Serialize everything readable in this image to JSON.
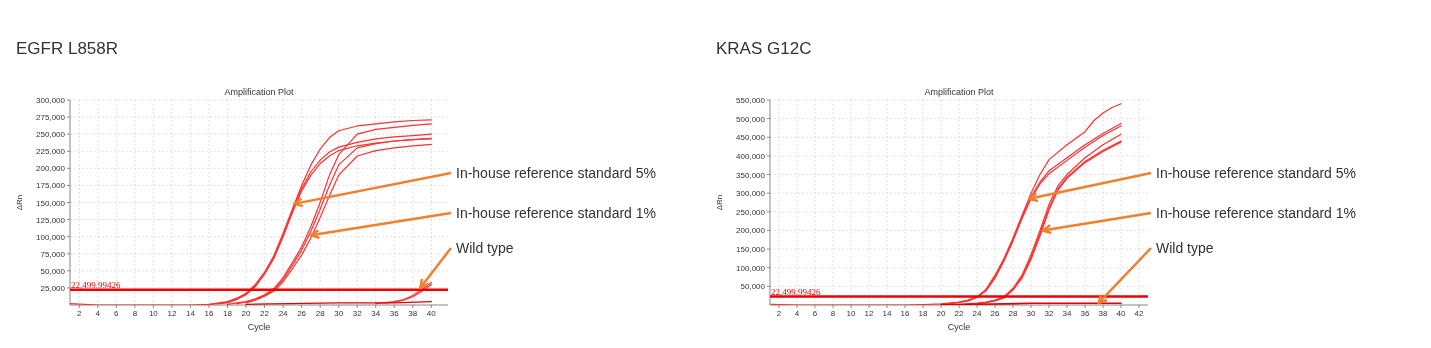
{
  "chart_data": [
    {
      "type": "line",
      "title": "EGFR  L858R",
      "subtitle": "Amplification Plot",
      "xlabel": "Cycle",
      "ylabel": "ΔRn",
      "xlim": [
        1,
        41.8
      ],
      "xticks": [
        2,
        4,
        6,
        8,
        10,
        12,
        14,
        16,
        18,
        20,
        22,
        24,
        26,
        28,
        30,
        32,
        34,
        36,
        38,
        40
      ],
      "ylim": [
        0,
        300000
      ],
      "yticks": [
        {
          "value": 25000,
          "label": "25,000"
        },
        {
          "value": 50000,
          "label": "50,000"
        },
        {
          "value": 75000,
          "label": "75,000"
        },
        {
          "value": 100000,
          "label": "100,000"
        },
        {
          "value": 125000,
          "label": "125,000"
        },
        {
          "value": 150000,
          "label": "150,000"
        },
        {
          "value": 175000,
          "label": "175,000"
        },
        {
          "value": 200000,
          "label": "200,000"
        },
        {
          "value": 225000,
          "label": "225,000"
        },
        {
          "value": 250000,
          "label": "250,000"
        },
        {
          "value": 275000,
          "label": "275,000"
        },
        {
          "value": 300000,
          "label": "300,000"
        }
      ],
      "grid": true,
      "ref_lines": [
        {
          "axis": "y",
          "value": 22499.99426,
          "label": "22,499.99426",
          "color": "#ee0000"
        }
      ],
      "annotations": [
        {
          "text": "In-house reference standard 5%",
          "x": 25.2,
          "y": 148000
        },
        {
          "text": "In-house reference standard 1%",
          "x": 27,
          "y": 102000
        },
        {
          "text": "Wild type",
          "x": 38.8,
          "y": 25000
        }
      ],
      "series": [
        {
          "color": "#ff3030",
          "x": [
            1,
            4,
            14,
            16,
            18,
            19,
            20,
            21,
            22,
            23,
            24,
            25,
            26,
            27,
            28,
            29,
            30,
            32,
            34,
            36,
            38,
            40
          ],
          "values": [
            2000,
            0,
            0,
            1000,
            5000,
            10000,
            17000,
            30000,
            48000,
            72000,
            105000,
            140000,
            175000,
            205000,
            228000,
            245000,
            255000,
            262000,
            265000,
            268000,
            270000,
            271000
          ]
        },
        {
          "color": "#ff3030",
          "x": [
            17,
            18,
            19,
            20,
            21,
            22,
            23,
            24,
            25,
            26,
            27,
            28,
            29,
            30,
            32,
            34,
            36,
            38,
            40
          ],
          "values": [
            2000,
            4000,
            9000,
            16000,
            28000,
            46000,
            70000,
            102000,
            138000,
            170000,
            195000,
            212000,
            224000,
            231000,
            238000,
            243000,
            246000,
            248000,
            250000
          ]
        },
        {
          "color": "#ff3030",
          "x": [
            16,
            18,
            19,
            20,
            21,
            22,
            23,
            24,
            25,
            26,
            27,
            28,
            29,
            30,
            32,
            34,
            36,
            38,
            40
          ],
          "values": [
            1000,
            3000,
            8000,
            15000,
            27000,
            45000,
            68000,
            100000,
            135000,
            167000,
            190000,
            207000,
            218000,
            226000,
            233000,
            237000,
            240000,
            242000,
            243000
          ]
        },
        {
          "color": "#ff3030",
          "x": [
            18,
            19,
            20,
            21,
            22,
            23,
            24,
            25,
            26,
            27,
            28,
            29,
            30,
            32,
            34,
            36,
            38,
            40
          ],
          "values": [
            1000,
            3000,
            5000,
            9000,
            15000,
            24000,
            40000,
            62000,
            85000,
            115000,
            150000,
            190000,
            220000,
            250000,
            257000,
            260000,
            263000,
            265000
          ]
        },
        {
          "color": "#ff3030",
          "x": [
            19,
            20,
            21,
            22,
            23,
            24,
            25,
            26,
            27,
            28,
            29,
            30,
            32,
            34,
            36,
            38,
            40
          ],
          "values": [
            2000,
            4000,
            8000,
            14000,
            22000,
            37000,
            58000,
            80000,
            108000,
            140000,
            175000,
            205000,
            230000,
            236000,
            240000,
            242000,
            244000
          ]
        },
        {
          "color": "#ff3030",
          "x": [
            20,
            21,
            22,
            23,
            24,
            25,
            26,
            27,
            28,
            29,
            30,
            32,
            34,
            36,
            38,
            40
          ],
          "values": [
            3000,
            7000,
            13000,
            20000,
            34000,
            53000,
            73000,
            98000,
            128000,
            160000,
            190000,
            218000,
            226000,
            230000,
            233000,
            235000
          ]
        },
        {
          "color": "#ff3030",
          "x": [
            34,
            36,
            37,
            38,
            39,
            40
          ],
          "values": [
            2000,
            5000,
            8000,
            14000,
            23000,
            33000
          ]
        },
        {
          "color": "#ff3030",
          "x": [
            35,
            36,
            37,
            38,
            39,
            40
          ],
          "values": [
            3000,
            4000,
            7000,
            12000,
            20000,
            30000
          ]
        },
        {
          "color": "#e00000",
          "x": [
            20,
            30,
            36,
            40
          ],
          "values": [
            1000,
            3000,
            3000,
            5000
          ]
        }
      ]
    },
    {
      "type": "line",
      "title": "KRAS  G12C",
      "subtitle": "Amplification Plot",
      "xlabel": "Cycle",
      "ylabel": "ΔRn",
      "xlim": [
        1,
        43
      ],
      "xticks": [
        2,
        4,
        6,
        8,
        10,
        12,
        14,
        16,
        18,
        20,
        22,
        24,
        26,
        28,
        30,
        32,
        34,
        36,
        38,
        40,
        42
      ],
      "ylim": [
        0,
        550000
      ],
      "yticks": [
        {
          "value": 50000,
          "label": "50,000"
        },
        {
          "value": 100000,
          "label": "100,000"
        },
        {
          "value": 150000,
          "label": "150,000"
        },
        {
          "value": 200000,
          "label": "200,000"
        },
        {
          "value": 250000,
          "label": "250,000"
        },
        {
          "value": 300000,
          "label": "300,000"
        },
        {
          "value": 350000,
          "label": "350,000"
        },
        {
          "value": 400000,
          "label": "400,000"
        },
        {
          "value": 450000,
          "label": "450,000"
        },
        {
          "value": 500000,
          "label": "500,000"
        },
        {
          "value": 550000,
          "label": "550,000"
        }
      ],
      "grid": true,
      "ref_lines": [
        {
          "axis": "y",
          "value": 22499.99426,
          "label": "22,499.99426",
          "color": "#ee0000"
        }
      ],
      "annotations": [
        {
          "text": "In-house reference standard 5%",
          "x": 29.8,
          "y": 285000
        },
        {
          "text": "In-house reference standard 1%",
          "x": 31.3,
          "y": 200000
        },
        {
          "text": "Wild type",
          "x": 37.5,
          "y": 5000
        }
      ],
      "series": [
        {
          "color": "#ff3030",
          "x": [
            1,
            4,
            16,
            18,
            20,
            22,
            23,
            24,
            25,
            26,
            27,
            28,
            29,
            30,
            31,
            32,
            34,
            36,
            37,
            38,
            39,
            40
          ],
          "values": [
            2000,
            0,
            0,
            1000,
            3000,
            8000,
            13000,
            22000,
            42000,
            80000,
            125000,
            180000,
            240000,
            300000,
            350000,
            390000,
            430000,
            465000,
            495000,
            515000,
            530000,
            540000
          ]
        },
        {
          "color": "#ff3030",
          "x": [
            20,
            22,
            23,
            24,
            25,
            26,
            27,
            28,
            29,
            30,
            31,
            32,
            34,
            36,
            38,
            40
          ],
          "values": [
            2000,
            6000,
            12000,
            21000,
            40000,
            75000,
            120000,
            175000,
            235000,
            290000,
            330000,
            360000,
            395000,
            430000,
            460000,
            487000
          ]
        },
        {
          "color": "#ff3030",
          "x": [
            21,
            22,
            23,
            24,
            25,
            26,
            27,
            28,
            29,
            30,
            31,
            32,
            34,
            36,
            38,
            40
          ],
          "values": [
            4000,
            7000,
            11000,
            20000,
            38000,
            72000,
            118000,
            172000,
            232000,
            285000,
            325000,
            352000,
            388000,
            423000,
            455000,
            480000
          ]
        },
        {
          "color": "#ff3030",
          "x": [
            22,
            24,
            25,
            26,
            27,
            28,
            29,
            30,
            31,
            32,
            33,
            34,
            36,
            38,
            40
          ],
          "values": [
            2000,
            5000,
            8000,
            13000,
            22000,
            45000,
            80000,
            135000,
            200000,
            270000,
            320000,
            350000,
            395000,
            430000,
            458000
          ]
        },
        {
          "color": "#ff3030",
          "x": [
            23,
            24,
            25,
            26,
            27,
            28,
            29,
            30,
            31,
            32,
            33,
            34,
            36,
            38,
            40
          ],
          "values": [
            3000,
            4000,
            7000,
            12000,
            20000,
            42000,
            75000,
            128000,
            192000,
            260000,
            312000,
            343000,
            385000,
            415000,
            440000
          ]
        },
        {
          "color": "#ff3030",
          "x": [
            24,
            25,
            26,
            27,
            28,
            29,
            30,
            31,
            32,
            33,
            34,
            36,
            38,
            40
          ],
          "values": [
            3000,
            6000,
            11000,
            19000,
            40000,
            72000,
            122000,
            185000,
            255000,
            308000,
            340000,
            382000,
            412000,
            437000
          ]
        },
        {
          "color": "#e00000",
          "x": [
            20,
            26,
            30,
            34,
            40
          ],
          "values": [
            1000,
            3000,
            5000,
            5000,
            5000
          ]
        },
        {
          "color": "#e00000",
          "x": [
            22,
            26,
            30,
            34,
            40
          ],
          "values": [
            1000,
            2000,
            4000,
            4000,
            4000
          ]
        }
      ]
    }
  ]
}
